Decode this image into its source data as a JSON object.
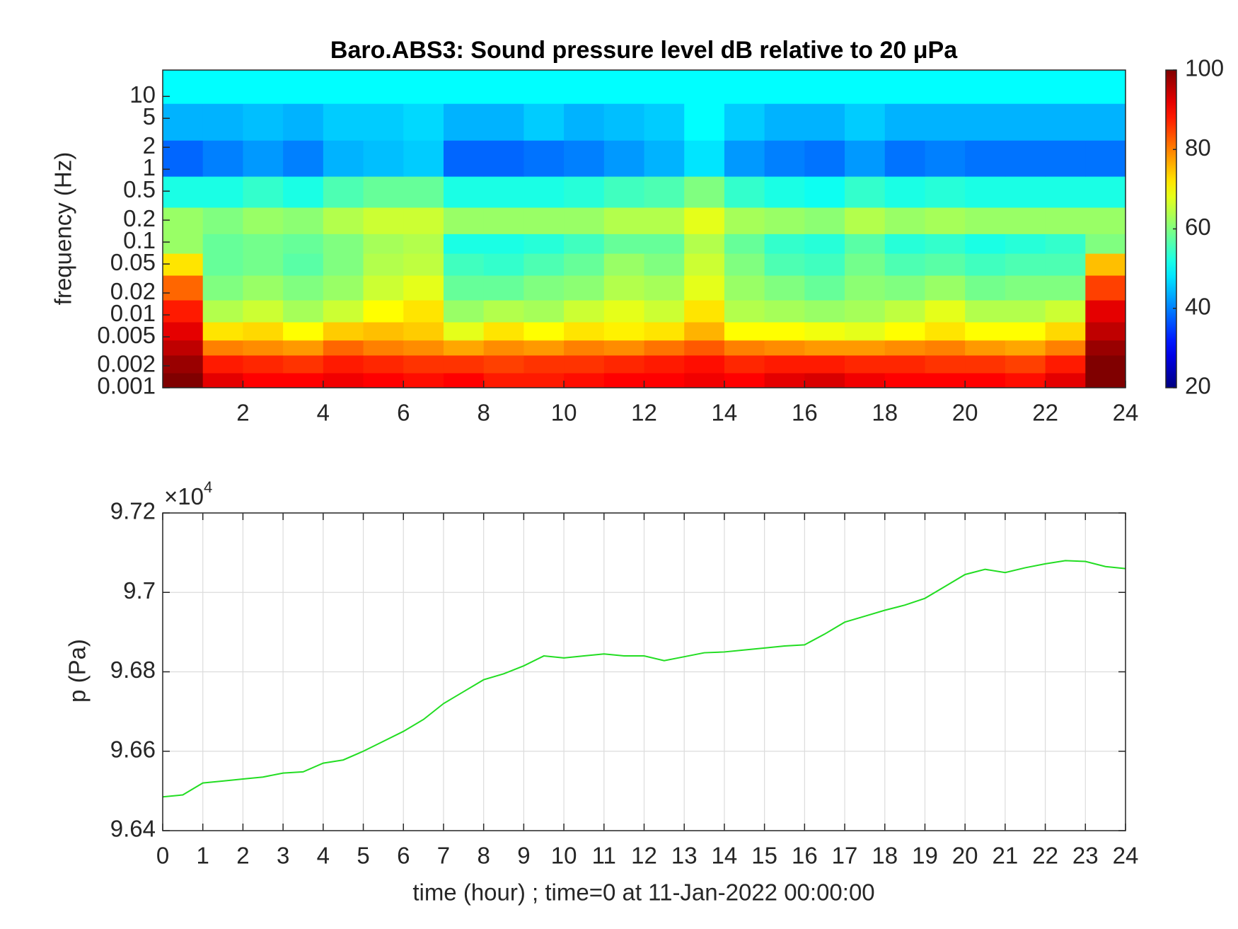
{
  "chart_data": [
    {
      "type": "heatmap",
      "title": "Baro.ABS3: Sound pressure level dB relative to 20 μPa",
      "y_label": "frequency (Hz)",
      "log_y": true,
      "xlim": [
        0,
        24
      ],
      "xticks": [
        2,
        4,
        6,
        8,
        10,
        12,
        14,
        16,
        18,
        20,
        22,
        24
      ],
      "ylim": [
        0.001,
        23
      ],
      "yticks": [
        0.001,
        0.002,
        0.005,
        0.01,
        0.02,
        0.05,
        0.1,
        0.2,
        0.5,
        1,
        2,
        5,
        10
      ],
      "x_edges": [
        0,
        1,
        2,
        3,
        4,
        5,
        6,
        7,
        8,
        9,
        10,
        11,
        12,
        13,
        14,
        15,
        16,
        17,
        18,
        19,
        20,
        21,
        22,
        23,
        24
      ],
      "y_edges": [
        0.001,
        0.0016,
        0.0028,
        0.0045,
        0.008,
        0.016,
        0.035,
        0.07,
        0.13,
        0.3,
        0.8,
        2.5,
        8,
        23
      ],
      "clim": [
        20,
        100
      ],
      "cticks": [
        20,
        40,
        60,
        80,
        100
      ],
      "colormap": "jet",
      "values": [
        [
          100,
          92,
          90,
          90,
          91,
          90,
          89,
          90,
          88,
          88,
          89,
          90,
          90,
          91,
          90,
          92,
          93,
          91,
          90,
          90,
          90,
          89,
          92,
          100
        ],
        [
          98,
          88,
          87,
          86,
          88,
          87,
          86,
          86,
          85,
          86,
          86,
          87,
          88,
          89,
          87,
          88,
          88,
          87,
          87,
          86,
          86,
          85,
          88,
          100
        ],
        [
          95,
          80,
          79,
          78,
          82,
          80,
          79,
          77,
          79,
          78,
          80,
          79,
          81,
          83,
          80,
          79,
          78,
          78,
          79,
          80,
          78,
          77,
          80,
          98
        ],
        [
          92,
          72,
          73,
          70,
          74,
          75,
          74,
          68,
          72,
          70,
          72,
          71,
          72,
          76,
          70,
          70,
          69,
          68,
          70,
          72,
          70,
          70,
          73,
          95
        ],
        [
          88,
          64,
          66,
          63,
          66,
          70,
          72,
          62,
          64,
          63,
          66,
          68,
          66,
          72,
          64,
          63,
          62,
          63,
          65,
          68,
          64,
          64,
          66,
          92
        ],
        [
          82,
          60,
          62,
          60,
          62,
          66,
          68,
          58,
          58,
          60,
          61,
          64,
          63,
          68,
          62,
          60,
          58,
          61,
          60,
          62,
          59,
          60,
          60,
          85
        ],
        [
          72,
          58,
          59,
          57,
          60,
          64,
          65,
          55,
          54,
          56,
          58,
          62,
          60,
          66,
          60,
          56,
          55,
          59,
          56,
          57,
          55,
          56,
          56,
          75
        ],
        [
          62,
          58,
          59,
          58,
          60,
          63,
          64,
          52,
          52,
          53,
          55,
          58,
          58,
          64,
          58,
          54,
          53,
          57,
          53,
          54,
          52,
          53,
          54,
          60
        ],
        [
          62,
          60,
          62,
          61,
          64,
          66,
          66,
          62,
          62,
          62,
          62,
          64,
          64,
          68,
          63,
          62,
          61,
          64,
          62,
          63,
          62,
          62,
          62,
          62
        ],
        [
          52,
          52,
          54,
          52,
          56,
          58,
          58,
          52,
          52,
          52,
          53,
          55,
          56,
          60,
          54,
          52,
          51,
          54,
          52,
          53,
          52,
          52,
          52,
          52
        ],
        [
          38,
          40,
          42,
          40,
          44,
          45,
          46,
          38,
          38,
          39,
          40,
          42,
          44,
          48,
          42,
          40,
          39,
          42,
          39,
          40,
          39,
          39,
          39,
          39
        ],
        [
          44,
          44,
          45,
          44,
          46,
          46,
          47,
          44,
          44,
          46,
          44,
          45,
          46,
          50,
          46,
          44,
          44,
          46,
          44,
          44,
          44,
          44,
          44,
          44
        ],
        [
          50,
          50,
          50,
          50,
          50,
          50,
          50,
          50,
          50,
          50,
          50,
          50,
          50,
          50,
          50,
          50,
          50,
          50,
          50,
          50,
          50,
          50,
          50,
          50
        ]
      ]
    },
    {
      "type": "line",
      "x_label": "time (hour) ; time=0 at 11-Jan-2022 00:00:00",
      "y_label": "p (Pa)",
      "y_exponent": "×10",
      "y_exponent_power": "4",
      "grid": true,
      "xlim": [
        0,
        24
      ],
      "xticks": [
        0,
        1,
        2,
        3,
        4,
        5,
        6,
        7,
        8,
        9,
        10,
        11,
        12,
        13,
        14,
        15,
        16,
        17,
        18,
        19,
        20,
        21,
        22,
        23,
        24
      ],
      "ylim": [
        96400,
        97200
      ],
      "yticks": [
        {
          "value": 96400,
          "label": "9.64"
        },
        {
          "value": 96600,
          "label": "9.66"
        },
        {
          "value": 96800,
          "label": "9.68"
        },
        {
          "value": 97000,
          "label": "9.7"
        },
        {
          "value": 97200,
          "label": "9.72"
        }
      ],
      "x": [
        0,
        0.5,
        1,
        1.5,
        2,
        2.5,
        3,
        3.5,
        4,
        4.5,
        5,
        5.5,
        6,
        6.5,
        7,
        7.5,
        8,
        8.5,
        9,
        9.5,
        10,
        10.5,
        11,
        11.5,
        12,
        12.5,
        13,
        13.5,
        14,
        14.5,
        15,
        15.5,
        16,
        16.5,
        17,
        17.5,
        18,
        18.5,
        19,
        19.5,
        20,
        20.5,
        21,
        21.5,
        22,
        22.5,
        23,
        23.5,
        24
      ],
      "series": [
        {
          "color": "#22dd22",
          "values": [
            96485,
            96490,
            96520,
            96525,
            96530,
            96535,
            96545,
            96548,
            96570,
            96578,
            96600,
            96625,
            96650,
            96680,
            96720,
            96750,
            96780,
            96795,
            96815,
            96840,
            96835,
            96840,
            96845,
            96840,
            96840,
            96828,
            96838,
            96848,
            96850,
            96855,
            96860,
            96865,
            96868,
            96895,
            96925,
            96940,
            96955,
            96968,
            96985,
            97015,
            97045,
            97058,
            97050,
            97062,
            97072,
            97080,
            97078,
            97065,
            97060
          ]
        }
      ]
    }
  ]
}
